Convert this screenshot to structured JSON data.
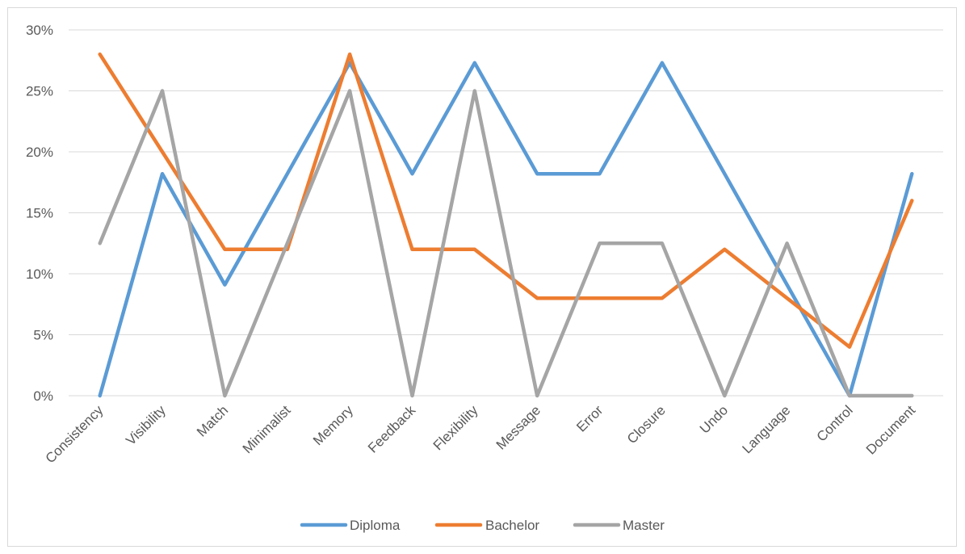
{
  "chart_data": {
    "type": "line",
    "title": "",
    "xlabel": "",
    "ylabel": "",
    "categories": [
      "Consistency",
      "Visibility",
      "Match",
      "Minimalist",
      "Memory",
      "Feedback",
      "Flexibility",
      "Message",
      "Error",
      "Closure",
      "Undo",
      "Language",
      "Control",
      "Document"
    ],
    "ylim": [
      0,
      0.3
    ],
    "yticks": [
      "0%",
      "5%",
      "10%",
      "15%",
      "20%",
      "25%",
      "30%"
    ],
    "grid": true,
    "legend": "bottom",
    "series": [
      {
        "name": "Diploma",
        "color": "#5b9bd5",
        "values": [
          0,
          0.182,
          0.091,
          0.182,
          0.273,
          0.182,
          0.273,
          0.182,
          0.182,
          0.273,
          0.182,
          0.091,
          0,
          0.182
        ]
      },
      {
        "name": "Bachelor",
        "color": "#ed7d31",
        "values": [
          0.28,
          0.2,
          0.12,
          0.12,
          0.28,
          0.12,
          0.12,
          0.08,
          0.08,
          0.08,
          0.12,
          0.08,
          0.04,
          0.16
        ]
      },
      {
        "name": "Master",
        "color": "#a5a5a5",
        "values": [
          0.125,
          0.25,
          0,
          0.125,
          0.25,
          0,
          0.25,
          0,
          0.125,
          0.125,
          0,
          0.125,
          0,
          0
        ]
      }
    ]
  }
}
